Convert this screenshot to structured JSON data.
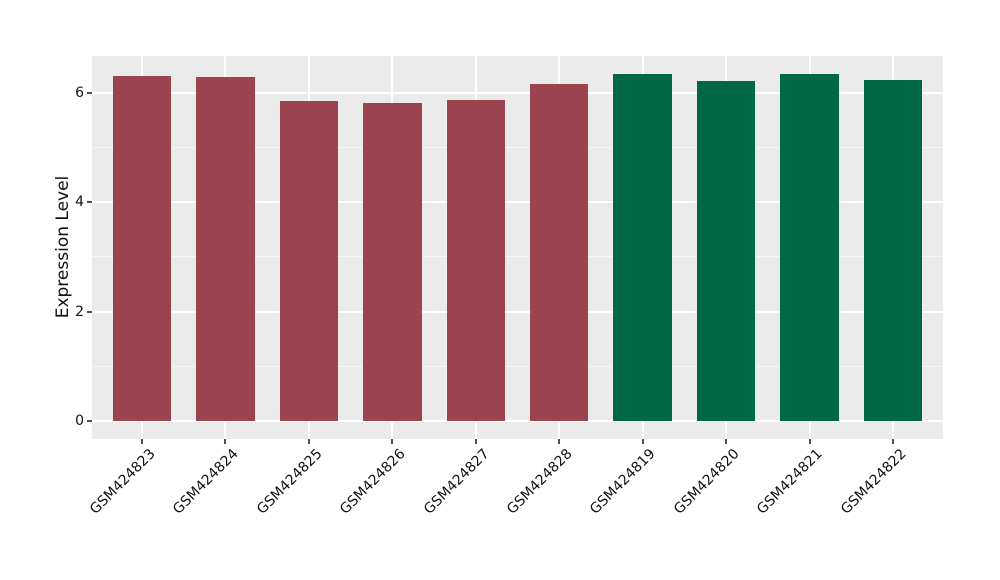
{
  "chart_data": {
    "type": "bar",
    "title": "",
    "xlabel": "",
    "ylabel": "Expression Level",
    "categories": [
      "GSM424823",
      "GSM424824",
      "GSM424825",
      "GSM424826",
      "GSM424827",
      "GSM424828",
      "GSM424819",
      "GSM424820",
      "GSM424821",
      "GSM424822"
    ],
    "values": [
      6.31,
      6.29,
      5.86,
      5.82,
      5.88,
      6.16,
      6.35,
      6.22,
      6.34,
      6.24
    ],
    "bar_colors": [
      "#9C4350",
      "#9C4350",
      "#9C4350",
      "#9C4350",
      "#9C4350",
      "#9C4350",
      "#006845",
      "#006845",
      "#006845",
      "#006845"
    ],
    "group_colors": {
      "maroon_group": "#9C4350",
      "green_group": "#006845"
    },
    "y_ticks": [
      0,
      2,
      4,
      6
    ],
    "y_minor_ticks": [
      1,
      3,
      5
    ],
    "ylim": [
      -0.33,
      6.68
    ],
    "bar_width_fraction": 0.7,
    "panel_background": "#EBEBEB",
    "grid_color": "#FFFFFF",
    "grid": "on",
    "legend": "none",
    "figure_background": "#FFFFFF",
    "tick_color": "#4d4d4d",
    "text_color": "#111111"
  }
}
